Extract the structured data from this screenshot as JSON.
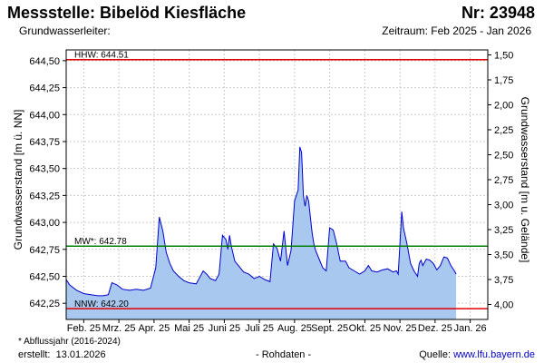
{
  "header": {
    "title": "Messstelle: Bibelöd Kiesfläche",
    "number": "Nr: 23948",
    "aquifer_label": "Grundwasserleiter:",
    "period": "Zeitraum: Feb 2025 - Jan 2026"
  },
  "footer": {
    "footnote": "* Abflussjahr (2016-2024)",
    "created_label": "erstellt:",
    "created_date": "13.01.2026",
    "raw_data": "- Rohdaten -",
    "source_label": "Quelle:",
    "source_link": "www.lfu.bayern.de"
  },
  "colors": {
    "area_fill": "#a8c8f0",
    "series_line": "#0000cc",
    "hhw_line": "#e00000",
    "nnw_line": "#e00000",
    "mw_line": "#008000",
    "grid": "#cccccc"
  },
  "chart_data": {
    "type": "area",
    "ylabel_left": "Grundwasserstand [m ü. NN]",
    "ylabel_right": "Grundwasserstand [m u. Gelände]",
    "ylim_left": [
      642.1,
      644.6
    ],
    "ylim_right": [
      4.15,
      1.45
    ],
    "yticks_left": [
      "644,50",
      "644,25",
      "644,00",
      "643,75",
      "643,50",
      "643,25",
      "643,00",
      "642,75",
      "642,50",
      "642,25"
    ],
    "ytick_values_left": [
      644.5,
      644.25,
      644.0,
      643.75,
      643.5,
      643.25,
      643.0,
      642.75,
      642.5,
      642.25
    ],
    "yticks_right": [
      "1,50",
      "1,75",
      "2,00",
      "2,25",
      "2,50",
      "2,75",
      "3,00",
      "3,25",
      "3,50",
      "3,75",
      "4,00"
    ],
    "ytick_values_right": [
      1.5,
      1.75,
      2.0,
      2.25,
      2.5,
      2.75,
      3.0,
      3.25,
      3.5,
      3.75,
      4.0
    ],
    "xticks": [
      "Feb. 25",
      "Mrz. 25",
      "Apr. 25",
      "Mai 25",
      "Juni 25",
      "Juli 25",
      "Aug. 25",
      "Sept. 25",
      "Okt. 25",
      "Nov. 25",
      "Dez. 25",
      "Jan. 26"
    ],
    "xtick_months": [
      1,
      2,
      3,
      4,
      5,
      6,
      7,
      8,
      9,
      10,
      11,
      12
    ],
    "xlim_months": [
      0.5,
      12.5
    ],
    "reference_lines": [
      {
        "label": "HHW: 644.51",
        "value": 644.51,
        "style": "hhw"
      },
      {
        "label": "MW*: 642.78",
        "value": 642.78,
        "style": "mw"
      },
      {
        "label": "NNW: 642.20",
        "value": 642.2,
        "style": "nnw"
      }
    ],
    "series": [
      {
        "x": [
          0.5,
          0.6,
          0.8,
          1.0,
          1.2,
          1.4,
          1.55,
          1.7,
          1.8,
          1.95,
          2.1,
          2.3,
          2.5,
          2.7,
          2.9,
          3.05,
          3.15,
          3.25,
          3.35,
          3.45,
          3.55,
          3.7,
          3.85,
          4.0,
          4.2,
          4.4,
          4.5,
          4.6,
          4.75,
          4.85,
          4.95,
          5.05,
          5.1,
          5.15,
          5.2,
          5.3,
          5.4,
          5.55,
          5.7,
          5.85,
          6.0,
          6.15,
          6.3,
          6.4,
          6.5,
          6.6,
          6.7,
          6.8,
          6.9,
          7.0,
          7.1,
          7.15,
          7.2,
          7.22,
          7.25,
          7.3,
          7.35,
          7.4,
          7.45,
          7.5,
          7.55,
          7.6,
          7.7,
          7.8,
          7.9,
          8.0,
          8.1,
          8.2,
          8.25,
          8.3,
          8.35,
          8.45,
          8.55,
          8.7,
          8.85,
          9.0,
          9.1,
          9.2,
          9.35,
          9.5,
          9.65,
          9.8,
          9.9,
          9.95,
          10.0,
          10.05,
          10.1,
          10.2,
          10.3,
          10.4,
          10.5,
          10.55,
          10.6,
          10.65,
          10.75,
          10.85,
          10.95,
          11.05,
          11.15,
          11.25,
          11.35,
          11.45,
          11.55,
          11.6
        ],
        "values": [
          642.47,
          642.42,
          642.37,
          642.34,
          642.33,
          642.32,
          642.32,
          642.33,
          642.44,
          642.42,
          642.38,
          642.37,
          642.38,
          642.37,
          642.39,
          642.58,
          643.05,
          642.92,
          642.72,
          642.62,
          642.55,
          642.5,
          642.46,
          642.44,
          642.43,
          642.55,
          642.52,
          642.48,
          642.46,
          642.52,
          642.88,
          642.84,
          642.75,
          642.88,
          642.78,
          642.64,
          642.6,
          642.54,
          642.52,
          642.48,
          642.5,
          642.47,
          642.45,
          642.8,
          642.76,
          642.64,
          642.92,
          642.6,
          642.74,
          643.2,
          643.3,
          643.7,
          643.65,
          643.5,
          643.25,
          643.15,
          643.25,
          643.2,
          643.05,
          642.9,
          642.8,
          642.74,
          642.66,
          642.58,
          642.55,
          642.95,
          642.93,
          642.8,
          642.72,
          642.64,
          642.64,
          642.64,
          642.58,
          642.55,
          642.52,
          642.55,
          642.6,
          642.55,
          642.54,
          642.56,
          642.57,
          642.54,
          642.55,
          642.52,
          642.8,
          643.1,
          642.95,
          642.8,
          642.62,
          642.55,
          642.5,
          642.62,
          642.65,
          642.6,
          642.66,
          642.65,
          642.62,
          642.56,
          642.6,
          642.68,
          642.67,
          642.6,
          642.55,
          642.52
        ]
      }
    ],
    "grid": true
  }
}
